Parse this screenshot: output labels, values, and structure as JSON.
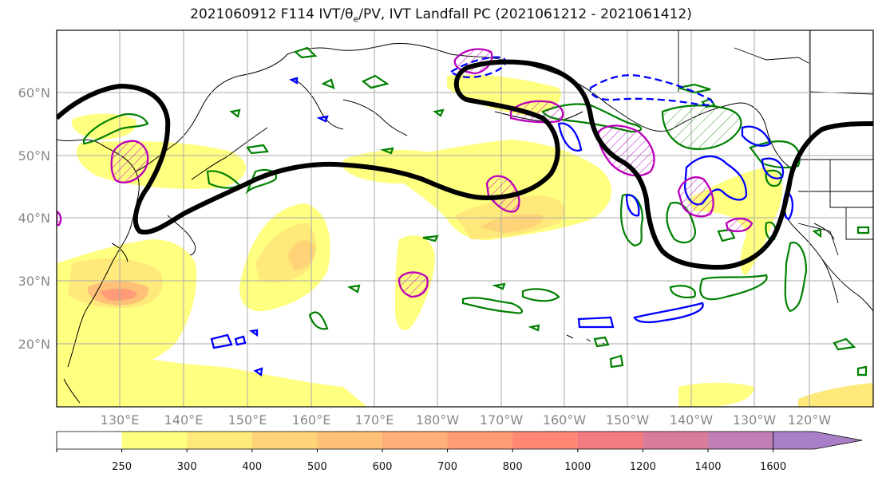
{
  "title": {
    "prefix": "2021060912 F114 IVT/θ",
    "sub": "e",
    "suffix": "/PV, IVT Landfall PC (2021061212 - 2021061412)"
  },
  "lat_labels": [
    "60°N",
    "50°N",
    "40°N",
    "30°N",
    "20°N"
  ],
  "lon_labels": [
    "130°E",
    "140°E",
    "150°E",
    "160°E",
    "170°E",
    "180°W",
    "170°W",
    "160°W",
    "150°W",
    "140°W",
    "130°W",
    "120°W"
  ],
  "colorbar": {
    "ticks": [
      "250",
      "300",
      "400",
      "500",
      "600",
      "700",
      "800",
      "1000",
      "1200",
      "1400",
      "1600"
    ],
    "colors": [
      "#ffffff",
      "#ffff80",
      "#ffe97a",
      "#ffd479",
      "#ffc178",
      "#ffaf77",
      "#ff9b76",
      "#ff8774",
      "#f27a80",
      "#d97c99",
      "#c27fb5",
      "#a97fc8"
    ]
  },
  "colors": {
    "ivt_contour": "#000000",
    "theta_e": "#008000",
    "pv_positive": "#0000ff",
    "pv_hatched": "#bb00bb"
  }
}
